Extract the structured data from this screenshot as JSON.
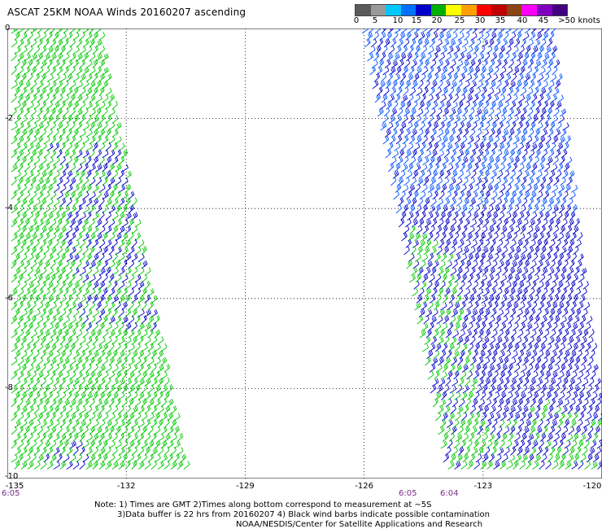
{
  "title": "ASCAT 25KM NOAA Winds 20160207 ascending",
  "colorbar": {
    "labels": [
      "0",
      "5",
      "10",
      "15",
      "20",
      "25",
      "30",
      "35",
      "40",
      "45",
      ">50 knots"
    ],
    "colors": [
      "#5a5a5a",
      "#9a9a9a",
      "#00c8ff",
      "#0070ff",
      "#0000c8",
      "#00b000",
      "#ffff00",
      "#ffa000",
      "#ff0000",
      "#c00000",
      "#8b4513",
      "#ff00ff",
      "#8000c0",
      "#400080"
    ]
  },
  "map": {
    "lon_ticks": [
      "-135",
      "-132",
      "-129",
      "-126",
      "-123",
      "-120"
    ],
    "lat_ticks": [
      "0",
      "-2",
      "-4",
      "-6",
      "-8",
      "-10"
    ],
    "lon_range": [
      -135,
      -120
    ],
    "lat_range": [
      0,
      -10
    ],
    "time_labels": [
      "6:05",
      "6:05",
      "6:04"
    ],
    "grid": "dotted",
    "barb_colors": {
      "green": "#00c800",
      "blue": "#0000c8",
      "light_blue": "#0050ff"
    }
  },
  "notes": {
    "line1": "Note: 1) Times are GMT 2)Times along bottom correspond to measurement at ~5S",
    "line2": "3)Data buffer is 22 hrs from 20160207 4) Black wind barbs indicate possible contamination",
    "line3": "NOAA/NESDIS/Center for Satellite Applications and Research"
  }
}
